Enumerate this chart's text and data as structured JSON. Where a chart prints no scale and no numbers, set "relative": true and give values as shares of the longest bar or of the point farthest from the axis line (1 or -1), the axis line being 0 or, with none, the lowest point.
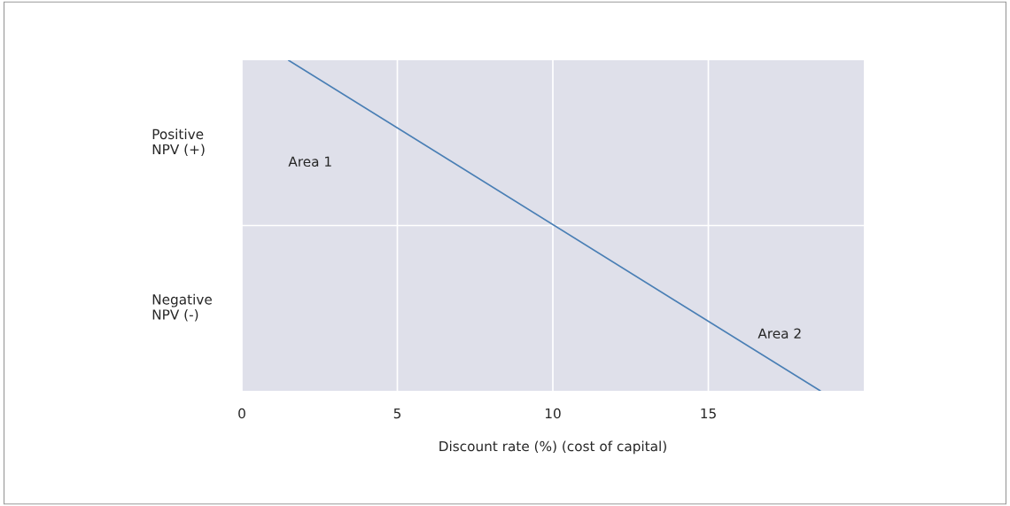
{
  "chart_data": {
    "type": "line",
    "xlabel": "Discount rate (%) (cost of capital)",
    "x": [
      1.5,
      18.6
    ],
    "series": [
      {
        "color": "#4a7fb5",
        "values": [
          1,
          -1
        ]
      }
    ],
    "relative": true,
    "xlim": [
      0,
      20
    ],
    "xticks": [
      0,
      5,
      10,
      15
    ],
    "grid": "x",
    "tick_labels": "x",
    "marker": "none",
    "line_style": "solid",
    "annotations": [
      "Positive\nNPV (+)",
      "Negative\nNPV (-)",
      "Area 1",
      "Area 2"
    ]
  }
}
